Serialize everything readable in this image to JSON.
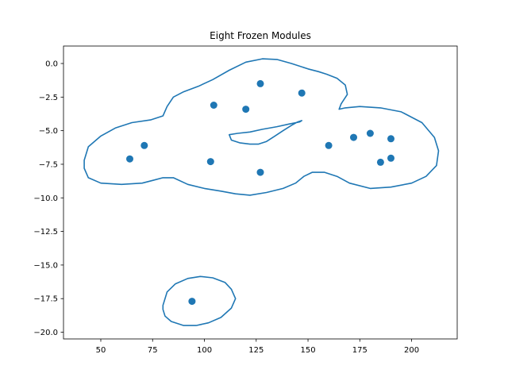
{
  "chart_data": {
    "type": "scatter",
    "title": "Eight Frozen Modules",
    "xlabel": "",
    "ylabel": "",
    "xlim": [
      32,
      222
    ],
    "ylim": [
      -20.5,
      1.3
    ],
    "xticks": [
      50,
      75,
      100,
      125,
      150,
      175,
      200
    ],
    "xtick_labels": [
      "50",
      "75",
      "100",
      "125",
      "150",
      "175",
      "200"
    ],
    "yticks": [
      0,
      -2.5,
      -5,
      -7.5,
      -10,
      -12.5,
      -15,
      -17.5,
      -20
    ],
    "ytick_labels": [
      "0.0",
      "−2.5",
      "−5.0",
      "−7.5",
      "−10.0",
      "−12.5",
      "−15.0",
      "−17.5",
      "−20.0"
    ],
    "grid": false,
    "point_color": "#1f77b4",
    "line_color": "#1f77b4",
    "points": [
      {
        "x": 64,
        "y": -7.1
      },
      {
        "x": 71,
        "y": -6.1
      },
      {
        "x": 94,
        "y": -17.7
      },
      {
        "x": 103,
        "y": -7.3
      },
      {
        "x": 104.5,
        "y": -3.1
      },
      {
        "x": 120,
        "y": -3.4
      },
      {
        "x": 127,
        "y": -1.5
      },
      {
        "x": 127,
        "y": -8.1
      },
      {
        "x": 147,
        "y": -2.2
      },
      {
        "x": 160,
        "y": -6.1
      },
      {
        "x": 172,
        "y": -5.5
      },
      {
        "x": 180,
        "y": -5.2
      },
      {
        "x": 185,
        "y": -7.35
      },
      {
        "x": 190,
        "y": -5.6
      },
      {
        "x": 190,
        "y": -7.05
      }
    ],
    "contours": [
      [
        [
          42,
          -7.2
        ],
        [
          44,
          -6.2
        ],
        [
          50,
          -5.4
        ],
        [
          57,
          -4.8
        ],
        [
          65,
          -4.4
        ],
        [
          74,
          -4.2
        ],
        [
          80,
          -3.9
        ],
        [
          82,
          -3.2
        ],
        [
          85,
          -2.5
        ],
        [
          90,
          -2.1
        ],
        [
          97,
          -1.7
        ],
        [
          104,
          -1.2
        ],
        [
          112,
          -0.5
        ],
        [
          120,
          0.1
        ],
        [
          128,
          0.35
        ],
        [
          135,
          0.3
        ],
        [
          142,
          0
        ],
        [
          150,
          -0.4
        ],
        [
          155,
          -0.6
        ],
        [
          159,
          -0.8
        ],
        [
          164,
          -1.1
        ],
        [
          168,
          -1.6
        ],
        [
          169,
          -2.3
        ],
        [
          166,
          -3
        ],
        [
          165,
          -3.4
        ],
        [
          168,
          -3.3
        ],
        [
          175,
          -3.2
        ],
        [
          185,
          -3.3
        ],
        [
          195,
          -3.6
        ],
        [
          205,
          -4.4
        ],
        [
          211,
          -5.5
        ],
        [
          213,
          -6.5
        ],
        [
          212,
          -7.6
        ],
        [
          207,
          -8.4
        ],
        [
          200,
          -8.9
        ],
        [
          190,
          -9.2
        ],
        [
          180,
          -9.3
        ],
        [
          170,
          -8.9
        ],
        [
          164,
          -8.4
        ],
        [
          158,
          -8.1
        ],
        [
          152,
          -8.1
        ],
        [
          148,
          -8.4
        ],
        [
          144,
          -8.9
        ],
        [
          138,
          -9.3
        ],
        [
          130,
          -9.6
        ],
        [
          122,
          -9.8
        ],
        [
          115,
          -9.7
        ],
        [
          108,
          -9.5
        ],
        [
          100,
          -9.3
        ],
        [
          92,
          -9.0
        ],
        [
          85,
          -8.5
        ],
        [
          80,
          -8.5
        ],
        [
          75,
          -8.7
        ],
        [
          70,
          -8.9
        ],
        [
          60,
          -9.0
        ],
        [
          50,
          -8.9
        ],
        [
          44,
          -8.5
        ],
        [
          42,
          -7.8
        ],
        [
          42,
          -7.2
        ]
      ],
      [
        [
          112,
          -5.3
        ],
        [
          113,
          -5.7
        ],
        [
          117,
          -5.9
        ],
        [
          122,
          -6.0
        ],
        [
          126,
          -6.0
        ],
        [
          130,
          -5.8
        ],
        [
          134,
          -5.4
        ],
        [
          138,
          -5.0
        ],
        [
          142,
          -4.6
        ],
        [
          145,
          -4.35
        ],
        [
          147,
          -4.25
        ],
        [
          146,
          -4.35
        ],
        [
          141,
          -4.5
        ],
        [
          135,
          -4.7
        ],
        [
          128,
          -4.9
        ],
        [
          122,
          -5.1
        ],
        [
          116,
          -5.2
        ],
        [
          112,
          -5.3
        ]
      ],
      [
        [
          80,
          -18.0
        ],
        [
          82,
          -17.0
        ],
        [
          86,
          -16.4
        ],
        [
          92,
          -16.0
        ],
        [
          98,
          -15.85
        ],
        [
          104,
          -15.95
        ],
        [
          110,
          -16.3
        ],
        [
          113,
          -16.8
        ],
        [
          115,
          -17.5
        ],
        [
          113,
          -18.2
        ],
        [
          108,
          -18.9
        ],
        [
          102,
          -19.3
        ],
        [
          96,
          -19.5
        ],
        [
          90,
          -19.5
        ],
        [
          84,
          -19.2
        ],
        [
          81,
          -18.8
        ],
        [
          80,
          -18.3
        ],
        [
          80,
          -18.0
        ]
      ]
    ]
  }
}
